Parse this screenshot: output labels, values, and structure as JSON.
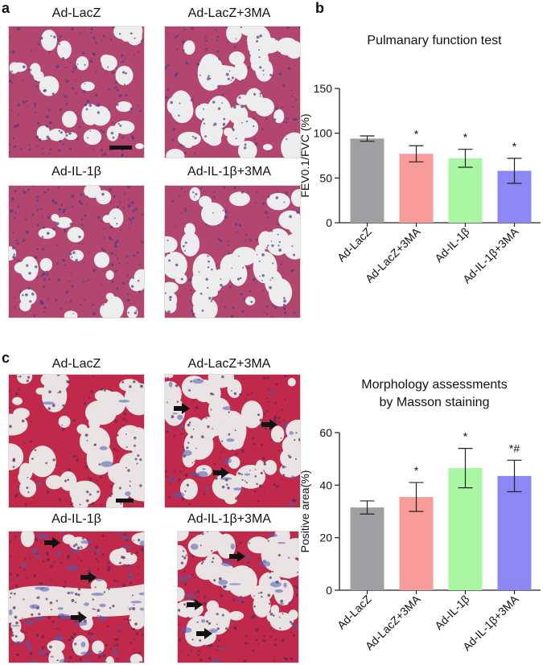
{
  "panels": {
    "a": {
      "letter": "a",
      "images": [
        {
          "label": "Ad-LacZ"
        },
        {
          "label": "Ad-LacZ+3MA"
        },
        {
          "label": "Ad-IL-1β"
        },
        {
          "label": "Ad-IL-1β+3MA"
        }
      ]
    },
    "b": {
      "letter": "b"
    },
    "c": {
      "letter": "c",
      "images": [
        {
          "label": "Ad-LacZ"
        },
        {
          "label": "Ad-LacZ+3MA"
        },
        {
          "label": "Ad-IL-1β"
        },
        {
          "label": "Ad-IL-1β+3MA"
        }
      ]
    }
  },
  "colors": {
    "he_background": "#ededee",
    "he_tissue": "#b3466e",
    "he_nuclei": "#4a3a8c",
    "masson_background": "#e9e3e4",
    "masson_red": "#c0294a",
    "masson_blue": "#4a5cb0",
    "bar_grey": "#a09ea3",
    "bar_pink": "#f79b9b",
    "bar_green": "#a9f7a2",
    "bar_blue": "#8b88f5"
  },
  "chart_data": [
    {
      "type": "bar",
      "title": "Pulmanary function test",
      "categories": [
        "Ad-LacZ",
        "Ad-LacZ+3MA",
        "Ad-IL-1β",
        "Ad-IL-1β+3MA"
      ],
      "values": [
        94,
        77,
        72,
        58
      ],
      "errors": [
        3,
        9,
        10,
        14
      ],
      "annotations": [
        "",
        "*",
        "*",
        "*"
      ],
      "colors": [
        "#a09ea3",
        "#f79b9b",
        "#a9f7a2",
        "#8b88f5"
      ],
      "ylabel": "FEV0.1/FVC (%)",
      "xlabel": "",
      "ylim": [
        0,
        150
      ],
      "yticks": [
        0,
        50,
        100,
        150
      ],
      "grid": false
    },
    {
      "type": "bar",
      "title": "Morphology assessments by Masson staining",
      "title_lines": [
        "Morphology assessments",
        "by Masson staining"
      ],
      "categories": [
        "Ad-LacZ",
        "Ad-LacZ+3MA",
        "Ad-IL-1β",
        "Ad-IL-1β+3MA"
      ],
      "values": [
        31.5,
        35.5,
        46.5,
        43.5
      ],
      "errors": [
        2.5,
        5.5,
        7.5,
        6.0
      ],
      "annotations": [
        "",
        "*",
        "*",
        "*#"
      ],
      "colors": [
        "#a09ea3",
        "#f79b9b",
        "#a9f7a2",
        "#8b88f5"
      ],
      "ylabel": "Positive area(%)",
      "xlabel": "",
      "ylim": [
        0,
        60
      ],
      "yticks": [
        0,
        20,
        40,
        60
      ],
      "grid": false
    }
  ]
}
